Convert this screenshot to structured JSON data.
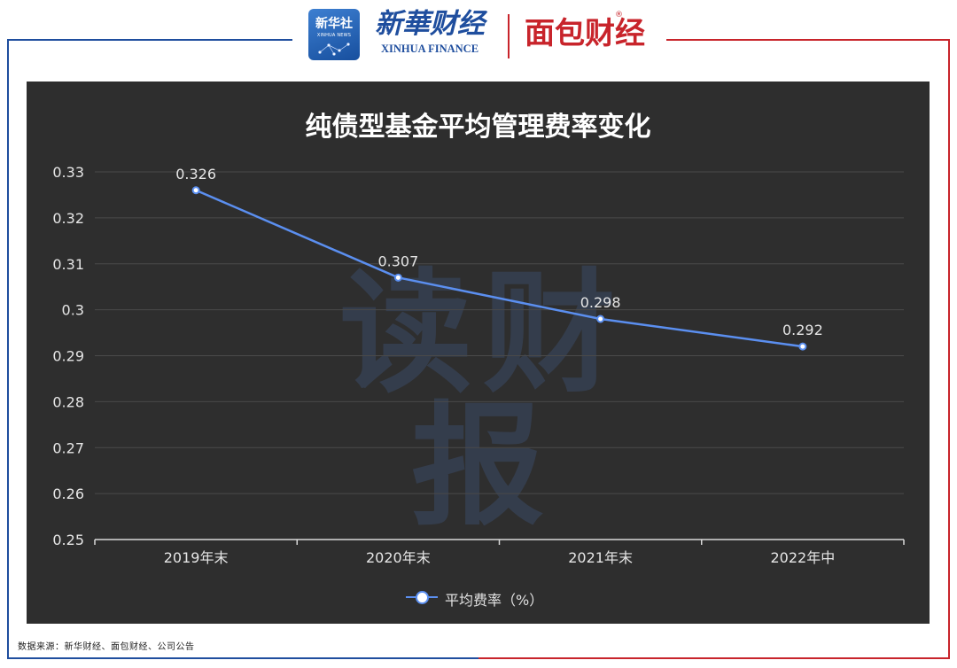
{
  "header": {
    "xinhua_badge_zh": "新华社",
    "xinhua_badge_en": "XINHUA NEWS",
    "brand_primary_zh": "新華财经",
    "brand_primary_en": "XINHUA FINANCE",
    "brand_secondary": "面包财经",
    "reg_mark": "®"
  },
  "watermark": "读财报",
  "source": "数据来源：新华财经、面包财经、公司公告",
  "colors": {
    "panel_bg": "#2e2e2e",
    "series": "#5b8ff0",
    "brand_blue": "#1f4e9e",
    "brand_red": "#c8242b"
  },
  "chart_data": {
    "type": "line",
    "title": "纯债型基金平均管理费率变化",
    "categories": [
      "2019年末",
      "2020年末",
      "2021年末",
      "2022年中"
    ],
    "series": [
      {
        "name": "平均费率（%）",
        "values": [
          0.326,
          0.307,
          0.298,
          0.292
        ]
      }
    ],
    "data_labels": [
      "0.326",
      "0.307",
      "0.298",
      "0.292"
    ],
    "yticks": [
      "0.25",
      "0.26",
      "0.27",
      "0.28",
      "0.29",
      "0.3",
      "0.31",
      "0.32",
      "0.33"
    ],
    "ylim": [
      0.25,
      0.33
    ],
    "grid": true,
    "legend_position": "bottom"
  }
}
